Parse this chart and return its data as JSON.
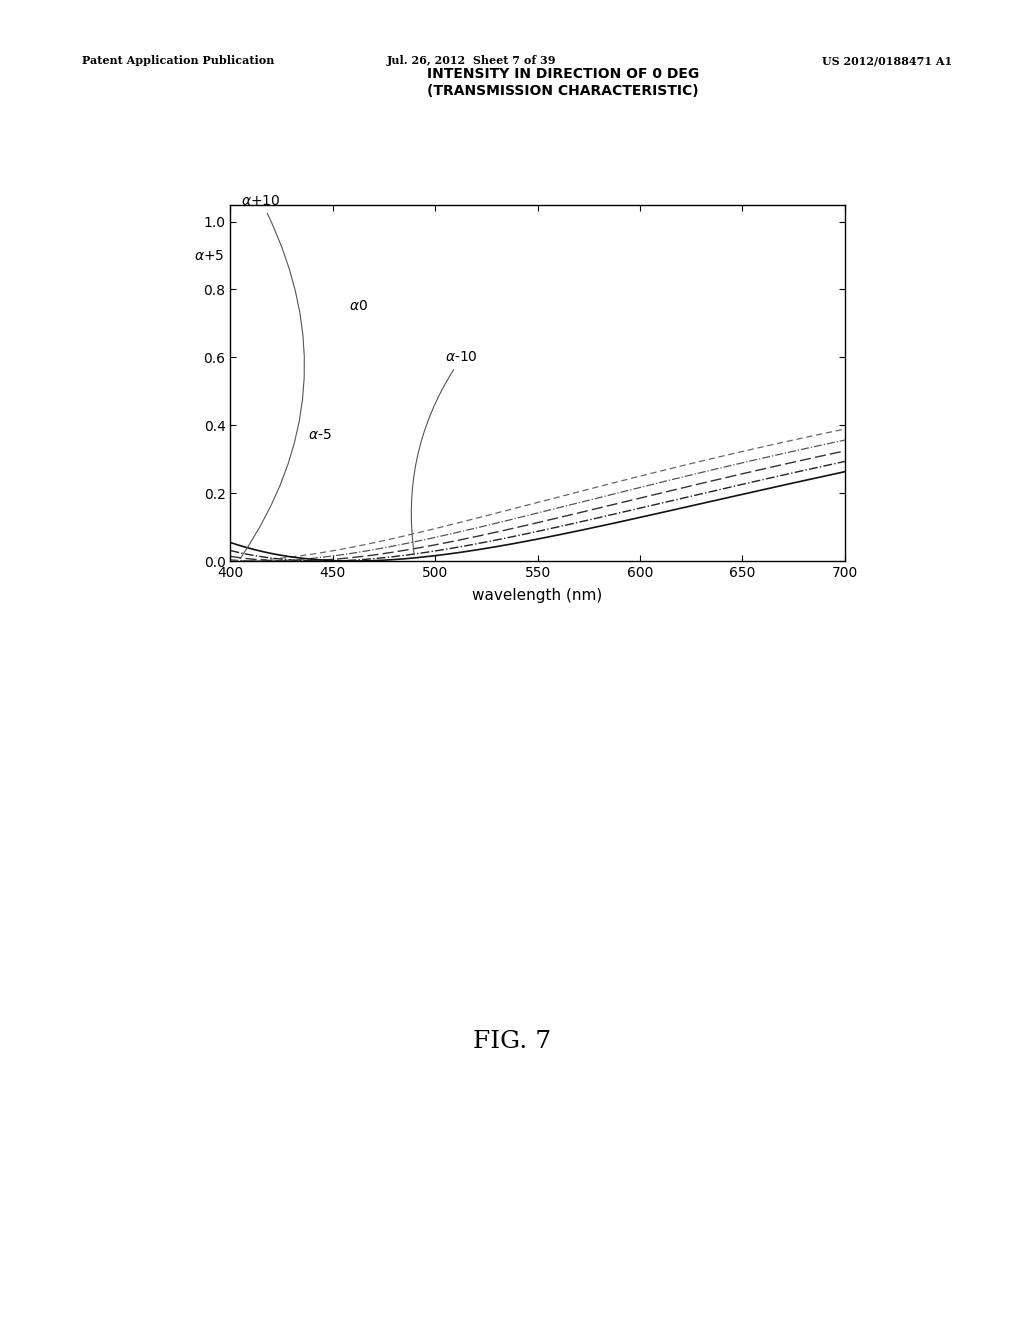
{
  "title_line1": "INTENSITY IN DIRECTION OF 0 DEG",
  "title_line2": "(TRANSMISSION CHARACTERISTIC)",
  "xlabel": "wavelength (nm)",
  "xlim": [
    400,
    700
  ],
  "ylim": [
    0.0,
    1.05
  ],
  "yticks": [
    0.0,
    0.2,
    0.4,
    0.6,
    0.8,
    1.0
  ],
  "xticks": [
    400,
    450,
    500,
    550,
    600,
    650,
    700
  ],
  "header_left": "Patent Application Publication",
  "header_mid": "Jul. 26, 2012  Sheet 7 of 39",
  "header_right": "US 2012/0188471 A1",
  "fig_label": "FIG. 7",
  "background_color": "#ffffff",
  "font_color": "#000000",
  "alpha_labels": [
    "α+10",
    "α+5",
    "α0",
    "α-5",
    "α-10"
  ]
}
